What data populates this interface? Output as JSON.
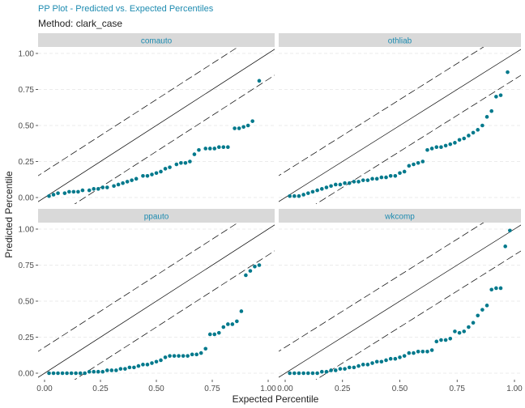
{
  "title": "PP Plot - Predicted vs. Expected Percentiles",
  "subtitle": "Method: clark_case",
  "colors": {
    "point": "#00798c",
    "strip_bg": "#d9d9d9",
    "strip_text": "#1d8bb0",
    "grid": "#ebebeb",
    "line": "#000000"
  },
  "chart_data": {
    "type": "scatter",
    "xlabel": "Expected Percentile",
    "ylabel": "Predicted Percentile",
    "xlim": [
      0,
      1
    ],
    "ylim": [
      0,
      1
    ],
    "xticks": [
      "0.00",
      "0.25",
      "0.50",
      "0.75",
      "1.00"
    ],
    "yticks": [
      "0.00",
      "0.25",
      "0.50",
      "0.75",
      "1.00"
    ],
    "grid": "horizontal dashed",
    "reference_lines": "y = x (solid) and y = x ± 0.18 (dashed)",
    "panels": [
      {
        "name": "comauto",
        "points": [
          [
            0.02,
            0.01
          ],
          [
            0.04,
            0.02
          ],
          [
            0.06,
            0.03
          ],
          [
            0.09,
            0.03
          ],
          [
            0.11,
            0.04
          ],
          [
            0.13,
            0.04
          ],
          [
            0.15,
            0.04
          ],
          [
            0.17,
            0.05
          ],
          [
            0.2,
            0.05
          ],
          [
            0.22,
            0.06
          ],
          [
            0.24,
            0.06
          ],
          [
            0.26,
            0.07
          ],
          [
            0.28,
            0.07
          ],
          [
            0.31,
            0.08
          ],
          [
            0.33,
            0.09
          ],
          [
            0.35,
            0.1
          ],
          [
            0.37,
            0.11
          ],
          [
            0.39,
            0.12
          ],
          [
            0.41,
            0.13
          ],
          [
            0.44,
            0.15
          ],
          [
            0.46,
            0.15
          ],
          [
            0.48,
            0.16
          ],
          [
            0.5,
            0.17
          ],
          [
            0.52,
            0.18
          ],
          [
            0.54,
            0.2
          ],
          [
            0.56,
            0.21
          ],
          [
            0.59,
            0.23
          ],
          [
            0.61,
            0.24
          ],
          [
            0.63,
            0.24
          ],
          [
            0.65,
            0.25
          ],
          [
            0.67,
            0.3
          ],
          [
            0.69,
            0.33
          ],
          [
            0.72,
            0.34
          ],
          [
            0.74,
            0.34
          ],
          [
            0.76,
            0.34
          ],
          [
            0.78,
            0.35
          ],
          [
            0.8,
            0.35
          ],
          [
            0.82,
            0.35
          ],
          [
            0.85,
            0.48
          ],
          [
            0.87,
            0.48
          ],
          [
            0.89,
            0.49
          ],
          [
            0.91,
            0.5
          ],
          [
            0.93,
            0.53
          ],
          [
            0.96,
            0.81
          ]
        ]
      },
      {
        "name": "othliab",
        "points": [
          [
            0.02,
            0.01
          ],
          [
            0.04,
            0.01
          ],
          [
            0.06,
            0.01
          ],
          [
            0.08,
            0.02
          ],
          [
            0.1,
            0.03
          ],
          [
            0.12,
            0.04
          ],
          [
            0.14,
            0.05
          ],
          [
            0.16,
            0.06
          ],
          [
            0.18,
            0.07
          ],
          [
            0.2,
            0.08
          ],
          [
            0.22,
            0.09
          ],
          [
            0.24,
            0.09
          ],
          [
            0.26,
            0.1
          ],
          [
            0.28,
            0.1
          ],
          [
            0.3,
            0.11
          ],
          [
            0.32,
            0.11
          ],
          [
            0.34,
            0.12
          ],
          [
            0.36,
            0.12
          ],
          [
            0.38,
            0.13
          ],
          [
            0.4,
            0.13
          ],
          [
            0.42,
            0.14
          ],
          [
            0.44,
            0.14
          ],
          [
            0.46,
            0.15
          ],
          [
            0.48,
            0.15
          ],
          [
            0.5,
            0.17
          ],
          [
            0.52,
            0.18
          ],
          [
            0.54,
            0.22
          ],
          [
            0.56,
            0.23
          ],
          [
            0.58,
            0.24
          ],
          [
            0.6,
            0.25
          ],
          [
            0.62,
            0.33
          ],
          [
            0.64,
            0.34
          ],
          [
            0.66,
            0.35
          ],
          [
            0.68,
            0.35
          ],
          [
            0.7,
            0.36
          ],
          [
            0.72,
            0.37
          ],
          [
            0.74,
            0.38
          ],
          [
            0.76,
            0.4
          ],
          [
            0.78,
            0.41
          ],
          [
            0.8,
            0.43
          ],
          [
            0.82,
            0.45
          ],
          [
            0.84,
            0.47
          ],
          [
            0.86,
            0.5
          ],
          [
            0.88,
            0.56
          ],
          [
            0.9,
            0.6
          ],
          [
            0.92,
            0.7
          ],
          [
            0.94,
            0.71
          ],
          [
            0.97,
            0.87
          ]
        ]
      },
      {
        "name": "ppauto",
        "points": [
          [
            0.02,
            0.0
          ],
          [
            0.04,
            0.0
          ],
          [
            0.06,
            0.0
          ],
          [
            0.08,
            0.0
          ],
          [
            0.1,
            0.0
          ],
          [
            0.12,
            0.0
          ],
          [
            0.14,
            0.0
          ],
          [
            0.16,
            0.0
          ],
          [
            0.18,
            0.0
          ],
          [
            0.2,
            0.01
          ],
          [
            0.22,
            0.01
          ],
          [
            0.24,
            0.01
          ],
          [
            0.26,
            0.01
          ],
          [
            0.28,
            0.02
          ],
          [
            0.3,
            0.02
          ],
          [
            0.32,
            0.02
          ],
          [
            0.34,
            0.03
          ],
          [
            0.36,
            0.03
          ],
          [
            0.38,
            0.04
          ],
          [
            0.4,
            0.04
          ],
          [
            0.42,
            0.05
          ],
          [
            0.44,
            0.06
          ],
          [
            0.46,
            0.06
          ],
          [
            0.48,
            0.07
          ],
          [
            0.5,
            0.08
          ],
          [
            0.52,
            0.09
          ],
          [
            0.54,
            0.11
          ],
          [
            0.56,
            0.12
          ],
          [
            0.58,
            0.12
          ],
          [
            0.6,
            0.12
          ],
          [
            0.62,
            0.12
          ],
          [
            0.64,
            0.12
          ],
          [
            0.66,
            0.13
          ],
          [
            0.68,
            0.13
          ],
          [
            0.7,
            0.14
          ],
          [
            0.72,
            0.17
          ],
          [
            0.74,
            0.27
          ],
          [
            0.76,
            0.27
          ],
          [
            0.78,
            0.28
          ],
          [
            0.8,
            0.32
          ],
          [
            0.82,
            0.34
          ],
          [
            0.84,
            0.34
          ],
          [
            0.86,
            0.36
          ],
          [
            0.88,
            0.43
          ],
          [
            0.9,
            0.68
          ],
          [
            0.92,
            0.71
          ],
          [
            0.94,
            0.74
          ],
          [
            0.96,
            0.75
          ]
        ]
      },
      {
        "name": "wkcomp",
        "points": [
          [
            0.02,
            0.0
          ],
          [
            0.04,
            0.0
          ],
          [
            0.06,
            0.0
          ],
          [
            0.08,
            0.0
          ],
          [
            0.1,
            0.0
          ],
          [
            0.12,
            0.0
          ],
          [
            0.14,
            0.0
          ],
          [
            0.16,
            0.01
          ],
          [
            0.18,
            0.01
          ],
          [
            0.2,
            0.02
          ],
          [
            0.22,
            0.02
          ],
          [
            0.24,
            0.03
          ],
          [
            0.26,
            0.03
          ],
          [
            0.28,
            0.04
          ],
          [
            0.3,
            0.04
          ],
          [
            0.32,
            0.05
          ],
          [
            0.34,
            0.06
          ],
          [
            0.36,
            0.06
          ],
          [
            0.38,
            0.07
          ],
          [
            0.4,
            0.08
          ],
          [
            0.42,
            0.08
          ],
          [
            0.44,
            0.09
          ],
          [
            0.46,
            0.1
          ],
          [
            0.48,
            0.1
          ],
          [
            0.5,
            0.11
          ],
          [
            0.52,
            0.12
          ],
          [
            0.54,
            0.14
          ],
          [
            0.56,
            0.14
          ],
          [
            0.58,
            0.15
          ],
          [
            0.6,
            0.15
          ],
          [
            0.62,
            0.15
          ],
          [
            0.64,
            0.16
          ],
          [
            0.66,
            0.22
          ],
          [
            0.68,
            0.23
          ],
          [
            0.7,
            0.23
          ],
          [
            0.72,
            0.24
          ],
          [
            0.74,
            0.29
          ],
          [
            0.76,
            0.28
          ],
          [
            0.78,
            0.29
          ],
          [
            0.8,
            0.32
          ],
          [
            0.82,
            0.35
          ],
          [
            0.84,
            0.4
          ],
          [
            0.86,
            0.44
          ],
          [
            0.88,
            0.47
          ],
          [
            0.9,
            0.58
          ],
          [
            0.92,
            0.59
          ],
          [
            0.94,
            0.59
          ],
          [
            0.96,
            0.88
          ],
          [
            0.98,
            0.99
          ]
        ]
      }
    ]
  }
}
